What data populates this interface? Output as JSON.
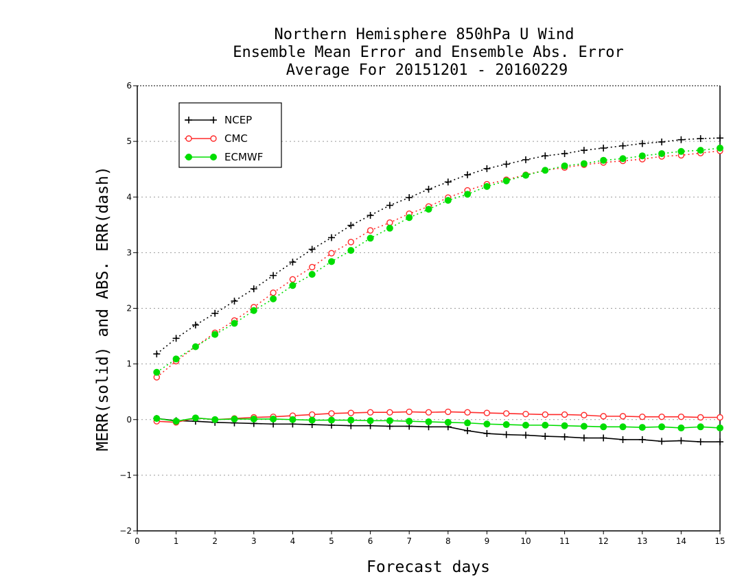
{
  "chart_data": {
    "type": "line",
    "title_lines": [
      "Northern Hemisphere 850hPa U Wind",
      "Ensemble Mean Error and Ensemble Abs. Error",
      "Average For 20151201 - 20160229"
    ],
    "xlabel": "Forecast days",
    "ylabel": "MERR(solid) and ABS. ERR(dash)",
    "xlim": [
      0,
      15
    ],
    "ylim": [
      -2,
      6
    ],
    "xticks": [
      "0",
      "1",
      "2",
      "3",
      "4",
      "5",
      "6",
      "7",
      "8",
      "9",
      "10",
      "11",
      "12",
      "13",
      "14",
      "15"
    ],
    "yticks": [
      "−2",
      "−1",
      "0",
      "1",
      "2",
      "3",
      "4",
      "5",
      "6"
    ],
    "grid": "horizontal dotted",
    "legend_position": "top-left",
    "x": [
      0.5,
      1,
      1.5,
      2,
      2.5,
      3,
      3.5,
      4,
      4.5,
      5,
      5.5,
      6,
      6.5,
      7,
      7.5,
      8,
      8.5,
      9,
      9.5,
      10,
      10.5,
      11,
      11.5,
      12,
      12.5,
      13,
      13.5,
      14,
      14.5,
      15
    ],
    "series": [
      {
        "name": "NCEP",
        "color": "#000000",
        "marker": "plus",
        "merr": [
          0.02,
          -0.02,
          -0.03,
          -0.05,
          -0.06,
          -0.07,
          -0.08,
          -0.08,
          -0.09,
          -0.1,
          -0.11,
          -0.11,
          -0.12,
          -0.12,
          -0.13,
          -0.13,
          -0.2,
          -0.25,
          -0.27,
          -0.28,
          -0.3,
          -0.31,
          -0.33,
          -0.33,
          -0.36,
          -0.36,
          -0.39,
          -0.38,
          -0.4,
          -0.4
        ],
        "abs_err": [
          1.18,
          1.46,
          1.7,
          1.91,
          2.13,
          2.35,
          2.59,
          2.83,
          3.06,
          3.27,
          3.49,
          3.67,
          3.85,
          3.99,
          4.14,
          4.27,
          4.4,
          4.51,
          4.59,
          4.67,
          4.74,
          4.78,
          4.84,
          4.88,
          4.92,
          4.96,
          4.99,
          5.03,
          5.05,
          5.06
        ]
      },
      {
        "name": "CMC",
        "color": "#ff2a2a",
        "marker": "open-circle",
        "merr": [
          -0.03,
          -0.05,
          0.03,
          0.0,
          0.02,
          0.04,
          0.05,
          0.07,
          0.09,
          0.11,
          0.12,
          0.13,
          0.13,
          0.14,
          0.13,
          0.14,
          0.13,
          0.12,
          0.11,
          0.1,
          0.09,
          0.09,
          0.08,
          0.06,
          0.06,
          0.05,
          0.05,
          0.05,
          0.04,
          0.04
        ],
        "abs_err": [
          0.76,
          1.05,
          1.31,
          1.56,
          1.78,
          2.02,
          2.28,
          2.52,
          2.74,
          2.99,
          3.19,
          3.4,
          3.54,
          3.7,
          3.83,
          3.99,
          4.12,
          4.23,
          4.31,
          4.4,
          4.48,
          4.53,
          4.58,
          4.62,
          4.65,
          4.68,
          4.73,
          4.75,
          4.79,
          4.83
        ]
      },
      {
        "name": "ECMWF",
        "color": "#00dd00",
        "marker": "filled-circle",
        "merr": [
          0.02,
          -0.03,
          0.03,
          0.0,
          0.01,
          0.01,
          0.01,
          0.0,
          -0.01,
          -0.01,
          -0.01,
          -0.02,
          -0.02,
          -0.03,
          -0.04,
          -0.05,
          -0.06,
          -0.08,
          -0.09,
          -0.1,
          -0.1,
          -0.11,
          -0.12,
          -0.13,
          -0.13,
          -0.14,
          -0.13,
          -0.15,
          -0.13,
          -0.15
        ],
        "abs_err": [
          0.85,
          1.09,
          1.31,
          1.53,
          1.73,
          1.96,
          2.17,
          2.41,
          2.61,
          2.84,
          3.04,
          3.26,
          3.44,
          3.63,
          3.78,
          3.94,
          4.05,
          4.19,
          4.29,
          4.39,
          4.48,
          4.56,
          4.6,
          4.66,
          4.69,
          4.74,
          4.78,
          4.82,
          4.84,
          4.88
        ]
      }
    ]
  }
}
